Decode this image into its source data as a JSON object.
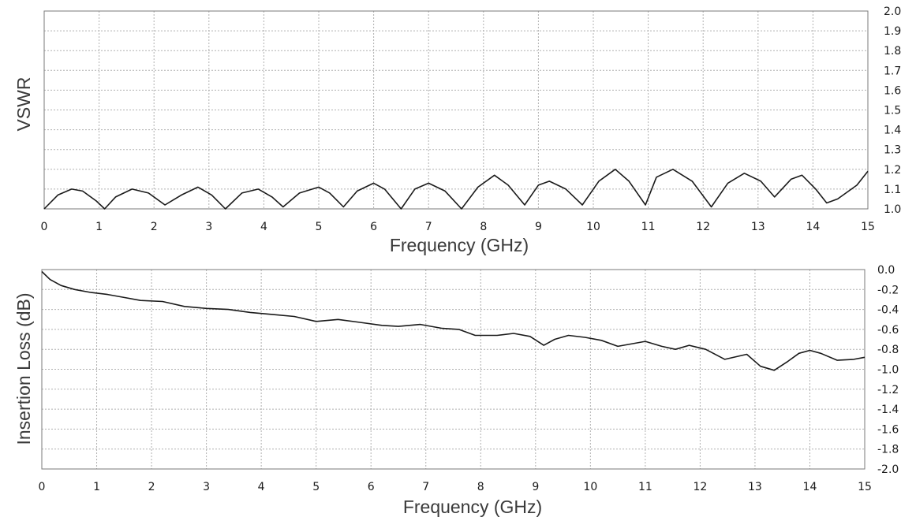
{
  "chart_data": [
    {
      "type": "line",
      "xlabel": "Frequency (GHz)",
      "ylabel": "VSWR",
      "xlim": [
        0,
        15
      ],
      "ylim": [
        1.0,
        2.0
      ],
      "x_ticks": [
        "0",
        "1",
        "2",
        "3",
        "4",
        "5",
        "6",
        "7",
        "8",
        "9",
        "10",
        "11",
        "12",
        "13",
        "14",
        "15"
      ],
      "y_ticks": [
        "2.0",
        "1.9",
        "1.8",
        "1.7",
        "1.6",
        "1.5",
        "1.4",
        "1.3",
        "1.2",
        "1.1",
        "1.0"
      ],
      "y_axis_side": "right",
      "grid": true,
      "series": [
        {
          "x": [
            0,
            0.25,
            0.5,
            0.7,
            0.95,
            1.1,
            1.3,
            1.6,
            1.9,
            2.2,
            2.5,
            2.8,
            3.05,
            3.3,
            3.6,
            3.9,
            4.15,
            4.35,
            4.65,
            5.0,
            5.2,
            5.45,
            5.7,
            6.0,
            6.2,
            6.5,
            6.75,
            7.0,
            7.3,
            7.6,
            7.9,
            8.2,
            8.45,
            8.75,
            9.0,
            9.2,
            9.5,
            9.8,
            10.1,
            10.4,
            10.65,
            10.95,
            11.15,
            11.45,
            11.8,
            12.15,
            12.45,
            12.75,
            13.05,
            13.3,
            13.6,
            13.8,
            14.05,
            14.25,
            14.45,
            14.6,
            14.8,
            15.0
          ],
          "values": [
            1.0,
            1.07,
            1.1,
            1.09,
            1.04,
            1.0,
            1.06,
            1.1,
            1.08,
            1.02,
            1.07,
            1.11,
            1.07,
            1.0,
            1.08,
            1.1,
            1.06,
            1.01,
            1.08,
            1.11,
            1.08,
            1.01,
            1.09,
            1.13,
            1.1,
            1.0,
            1.1,
            1.13,
            1.09,
            1.0,
            1.11,
            1.17,
            1.12,
            1.02,
            1.12,
            1.14,
            1.1,
            1.02,
            1.14,
            1.2,
            1.14,
            1.02,
            1.16,
            1.2,
            1.14,
            1.01,
            1.13,
            1.18,
            1.14,
            1.06,
            1.15,
            1.17,
            1.1,
            1.03,
            1.05,
            1.08,
            1.12,
            1.19
          ]
        }
      ]
    },
    {
      "type": "line",
      "xlabel": "Frequency (GHz)",
      "ylabel": "Insertion Loss (dB)",
      "xlim": [
        0,
        15
      ],
      "ylim": [
        -2.0,
        0.0
      ],
      "x_ticks": [
        "0",
        "1",
        "2",
        "3",
        "4",
        "5",
        "6",
        "7",
        "8",
        "9",
        "10",
        "11",
        "12",
        "13",
        "14",
        "15"
      ],
      "y_ticks": [
        "0.0",
        "-0.2",
        "-0.4",
        "-0.6",
        "-0.8",
        "-1.0",
        "-1.2",
        "-1.4",
        "-1.6",
        "-1.8",
        "-2.0"
      ],
      "y_axis_side": "right",
      "grid": true,
      "series": [
        {
          "x": [
            0,
            0.15,
            0.35,
            0.6,
            0.9,
            1.2,
            1.5,
            1.8,
            2.2,
            2.6,
            3.0,
            3.4,
            3.8,
            4.2,
            4.6,
            5.0,
            5.4,
            5.8,
            6.2,
            6.5,
            6.9,
            7.3,
            7.6,
            7.9,
            8.3,
            8.6,
            8.9,
            9.15,
            9.35,
            9.6,
            9.9,
            10.2,
            10.5,
            10.8,
            11.0,
            11.3,
            11.55,
            11.8,
            12.1,
            12.45,
            12.85,
            13.1,
            13.35,
            13.6,
            13.8,
            14.0,
            14.2,
            14.5,
            14.8,
            15.0
          ],
          "values": [
            -0.02,
            -0.1,
            -0.16,
            -0.2,
            -0.23,
            -0.25,
            -0.28,
            -0.31,
            -0.32,
            -0.37,
            -0.39,
            -0.4,
            -0.43,
            -0.45,
            -0.47,
            -0.52,
            -0.5,
            -0.53,
            -0.56,
            -0.57,
            -0.55,
            -0.59,
            -0.6,
            -0.66,
            -0.66,
            -0.64,
            -0.67,
            -0.76,
            -0.7,
            -0.66,
            -0.68,
            -0.71,
            -0.77,
            -0.74,
            -0.72,
            -0.77,
            -0.8,
            -0.76,
            -0.8,
            -0.9,
            -0.85,
            -0.97,
            -1.01,
            -0.92,
            -0.84,
            -0.81,
            -0.84,
            -0.91,
            -0.9,
            -0.88
          ]
        }
      ]
    }
  ]
}
